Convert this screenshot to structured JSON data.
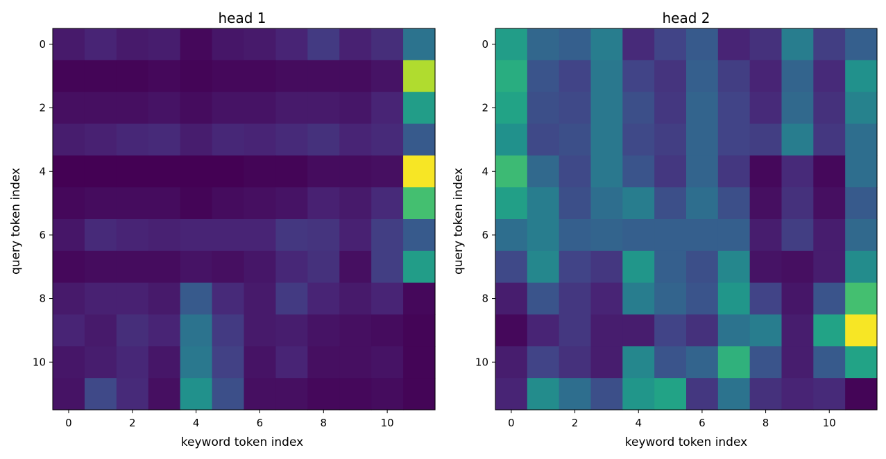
{
  "chart_data": [
    {
      "type": "heatmap",
      "title": "head 1",
      "xlabel": "keyword token index",
      "ylabel": "query token index",
      "x_ticks": [
        "0",
        "2",
        "4",
        "6",
        "8",
        "10"
      ],
      "y_ticks": [
        "0",
        "2",
        "4",
        "6",
        "8",
        "10"
      ],
      "x_tick_values": [
        0,
        2,
        4,
        6,
        8,
        10
      ],
      "y_tick_values": [
        0,
        2,
        4,
        6,
        8,
        10
      ],
      "colormap": "viridis",
      "value_range": [
        0,
        1
      ],
      "values": [
        [
          0.07,
          0.1,
          0.07,
          0.08,
          0.02,
          0.06,
          0.07,
          0.1,
          0.17,
          0.09,
          0.13,
          0.38
        ],
        [
          0.01,
          0.01,
          0.01,
          0.02,
          0.01,
          0.02,
          0.02,
          0.03,
          0.03,
          0.03,
          0.05,
          0.88
        ],
        [
          0.04,
          0.04,
          0.04,
          0.05,
          0.03,
          0.05,
          0.05,
          0.07,
          0.07,
          0.06,
          0.1,
          0.55
        ],
        [
          0.08,
          0.09,
          0.11,
          0.12,
          0.08,
          0.11,
          0.1,
          0.12,
          0.14,
          0.1,
          0.12,
          0.28
        ],
        [
          0.0,
          0.0,
          0.0,
          0.0,
          0.0,
          0.0,
          0.01,
          0.01,
          0.03,
          0.03,
          0.04,
          0.99
        ],
        [
          0.02,
          0.03,
          0.03,
          0.03,
          0.01,
          0.03,
          0.04,
          0.05,
          0.09,
          0.07,
          0.12,
          0.7
        ],
        [
          0.06,
          0.12,
          0.1,
          0.09,
          0.1,
          0.1,
          0.1,
          0.16,
          0.15,
          0.09,
          0.18,
          0.28
        ],
        [
          0.02,
          0.03,
          0.03,
          0.03,
          0.05,
          0.04,
          0.06,
          0.11,
          0.14,
          0.04,
          0.18,
          0.55
        ],
        [
          0.07,
          0.09,
          0.09,
          0.07,
          0.28,
          0.12,
          0.07,
          0.17,
          0.1,
          0.07,
          0.1,
          0.02
        ],
        [
          0.1,
          0.07,
          0.13,
          0.1,
          0.38,
          0.17,
          0.07,
          0.08,
          0.05,
          0.04,
          0.03,
          0.01
        ],
        [
          0.06,
          0.08,
          0.11,
          0.06,
          0.4,
          0.19,
          0.05,
          0.1,
          0.04,
          0.04,
          0.05,
          0.01
        ],
        [
          0.05,
          0.22,
          0.12,
          0.04,
          0.5,
          0.24,
          0.04,
          0.04,
          0.02,
          0.02,
          0.03,
          0.01
        ]
      ]
    },
    {
      "type": "heatmap",
      "title": "head 2",
      "xlabel": "keyword token index",
      "ylabel": "query token index",
      "x_ticks": [
        "0",
        "2",
        "4",
        "6",
        "8",
        "10"
      ],
      "y_ticks": [
        "0",
        "2",
        "4",
        "6",
        "8",
        "10"
      ],
      "x_tick_values": [
        0,
        2,
        4,
        6,
        8,
        10
      ],
      "y_tick_values": [
        0,
        2,
        4,
        6,
        8,
        10
      ],
      "colormap": "viridis",
      "value_range": [
        0,
        1
      ],
      "values": [
        [
          0.55,
          0.33,
          0.3,
          0.42,
          0.12,
          0.2,
          0.28,
          0.1,
          0.14,
          0.42,
          0.18,
          0.3
        ],
        [
          0.62,
          0.26,
          0.2,
          0.4,
          0.2,
          0.15,
          0.3,
          0.18,
          0.1,
          0.32,
          0.12,
          0.5
        ],
        [
          0.58,
          0.24,
          0.22,
          0.4,
          0.24,
          0.16,
          0.32,
          0.2,
          0.12,
          0.34,
          0.14,
          0.44
        ],
        [
          0.5,
          0.22,
          0.24,
          0.4,
          0.22,
          0.18,
          0.32,
          0.2,
          0.18,
          0.42,
          0.16,
          0.36
        ],
        [
          0.68,
          0.34,
          0.22,
          0.4,
          0.26,
          0.16,
          0.32,
          0.16,
          0.02,
          0.12,
          0.02,
          0.36
        ],
        [
          0.56,
          0.42,
          0.24,
          0.36,
          0.42,
          0.24,
          0.36,
          0.24,
          0.04,
          0.14,
          0.04,
          0.28
        ],
        [
          0.36,
          0.42,
          0.3,
          0.32,
          0.3,
          0.3,
          0.3,
          0.3,
          0.08,
          0.18,
          0.08,
          0.34
        ],
        [
          0.22,
          0.46,
          0.2,
          0.16,
          0.52,
          0.3,
          0.24,
          0.46,
          0.05,
          0.04,
          0.08,
          0.48
        ],
        [
          0.08,
          0.26,
          0.16,
          0.1,
          0.42,
          0.32,
          0.26,
          0.52,
          0.2,
          0.06,
          0.26,
          0.7
        ],
        [
          0.02,
          0.1,
          0.16,
          0.08,
          0.08,
          0.2,
          0.14,
          0.38,
          0.42,
          0.08,
          0.58,
          0.99
        ],
        [
          0.08,
          0.2,
          0.14,
          0.08,
          0.46,
          0.26,
          0.32,
          0.64,
          0.26,
          0.08,
          0.28,
          0.58
        ],
        [
          0.1,
          0.48,
          0.36,
          0.24,
          0.52,
          0.58,
          0.16,
          0.38,
          0.14,
          0.1,
          0.12,
          0.01
        ]
      ]
    }
  ]
}
